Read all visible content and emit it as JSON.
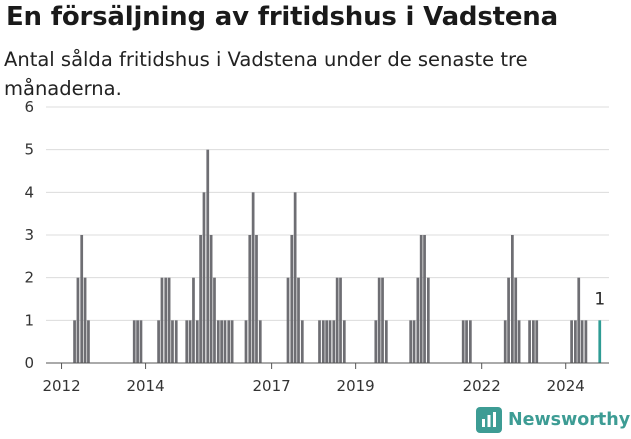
{
  "colors": {
    "bar": "#6e6e73",
    "highlight": "#2e9c94",
    "grid": "#dcdcdc",
    "brand": "#3d9c94"
  },
  "brand": {
    "name": "Newsworthy",
    "icon": "bar-chart-logo-icon"
  },
  "chart_data": {
    "type": "bar",
    "title": "En försäljning av fritidshus i Vadstena",
    "subtitle": "Antal sålda fritidshus i Vadstena under de senaste tre månaderna.",
    "xlabel": "",
    "ylabel": "",
    "ylim": [
      0,
      6
    ],
    "yticks": [
      0,
      1,
      2,
      3,
      4,
      5,
      6
    ],
    "grid": true,
    "x_tick_labels": [
      {
        "label": "2012",
        "x": 2012.0
      },
      {
        "label": "2014",
        "x": 2014.0
      },
      {
        "label": "2017",
        "x": 2017.0
      },
      {
        "label": "2019",
        "x": 2019.0
      },
      {
        "label": "2022",
        "x": 2022.0
      },
      {
        "label": "2024",
        "x": 2024.0
      }
    ],
    "xlim": [
      2011.63,
      2025.03
    ],
    "series": [
      {
        "points": [
          {
            "x": 2012.31,
            "y": 1
          },
          {
            "x": 2012.39,
            "y": 2
          },
          {
            "x": 2012.48,
            "y": 3
          },
          {
            "x": 2012.56,
            "y": 2
          },
          {
            "x": 2012.64,
            "y": 1
          },
          {
            "x": 2013.73,
            "y": 1
          },
          {
            "x": 2013.81,
            "y": 1
          },
          {
            "x": 2013.89,
            "y": 1
          },
          {
            "x": 2014.31,
            "y": 1
          },
          {
            "x": 2014.39,
            "y": 2
          },
          {
            "x": 2014.48,
            "y": 2
          },
          {
            "x": 2014.56,
            "y": 2
          },
          {
            "x": 2014.64,
            "y": 1
          },
          {
            "x": 2014.73,
            "y": 1
          },
          {
            "x": 2014.98,
            "y": 1
          },
          {
            "x": 2015.06,
            "y": 1
          },
          {
            "x": 2015.14,
            "y": 2
          },
          {
            "x": 2015.23,
            "y": 1
          },
          {
            "x": 2015.31,
            "y": 3
          },
          {
            "x": 2015.39,
            "y": 4
          },
          {
            "x": 2015.48,
            "y": 5
          },
          {
            "x": 2015.56,
            "y": 3
          },
          {
            "x": 2015.64,
            "y": 2
          },
          {
            "x": 2015.73,
            "y": 1
          },
          {
            "x": 2015.81,
            "y": 1
          },
          {
            "x": 2015.89,
            "y": 1
          },
          {
            "x": 2015.98,
            "y": 1
          },
          {
            "x": 2016.06,
            "y": 1
          },
          {
            "x": 2016.39,
            "y": 1
          },
          {
            "x": 2016.48,
            "y": 3
          },
          {
            "x": 2016.56,
            "y": 4
          },
          {
            "x": 2016.64,
            "y": 3
          },
          {
            "x": 2016.73,
            "y": 1
          },
          {
            "x": 2017.39,
            "y": 2
          },
          {
            "x": 2017.48,
            "y": 3
          },
          {
            "x": 2017.56,
            "y": 4
          },
          {
            "x": 2017.64,
            "y": 2
          },
          {
            "x": 2017.73,
            "y": 1
          },
          {
            "x": 2018.14,
            "y": 1
          },
          {
            "x": 2018.23,
            "y": 1
          },
          {
            "x": 2018.31,
            "y": 1
          },
          {
            "x": 2018.39,
            "y": 1
          },
          {
            "x": 2018.48,
            "y": 1
          },
          {
            "x": 2018.56,
            "y": 2
          },
          {
            "x": 2018.64,
            "y": 2
          },
          {
            "x": 2018.73,
            "y": 1
          },
          {
            "x": 2019.48,
            "y": 1
          },
          {
            "x": 2019.56,
            "y": 2
          },
          {
            "x": 2019.64,
            "y": 2
          },
          {
            "x": 2019.73,
            "y": 1
          },
          {
            "x": 2020.31,
            "y": 1
          },
          {
            "x": 2020.39,
            "y": 1
          },
          {
            "x": 2020.48,
            "y": 2
          },
          {
            "x": 2020.56,
            "y": 3
          },
          {
            "x": 2020.64,
            "y": 3
          },
          {
            "x": 2020.73,
            "y": 2
          },
          {
            "x": 2021.56,
            "y": 1
          },
          {
            "x": 2021.64,
            "y": 1
          },
          {
            "x": 2021.73,
            "y": 1
          },
          {
            "x": 2022.56,
            "y": 1
          },
          {
            "x": 2022.64,
            "y": 2
          },
          {
            "x": 2022.73,
            "y": 3
          },
          {
            "x": 2022.81,
            "y": 2
          },
          {
            "x": 2022.89,
            "y": 1
          },
          {
            "x": 2023.14,
            "y": 1
          },
          {
            "x": 2023.23,
            "y": 1
          },
          {
            "x": 2023.31,
            "y": 1
          },
          {
            "x": 2024.14,
            "y": 1
          },
          {
            "x": 2024.23,
            "y": 1
          },
          {
            "x": 2024.31,
            "y": 2
          },
          {
            "x": 2024.39,
            "y": 1
          },
          {
            "x": 2024.48,
            "y": 1
          },
          {
            "x": 2024.81,
            "y": 1,
            "highlight": true,
            "label": "1"
          }
        ]
      }
    ]
  }
}
